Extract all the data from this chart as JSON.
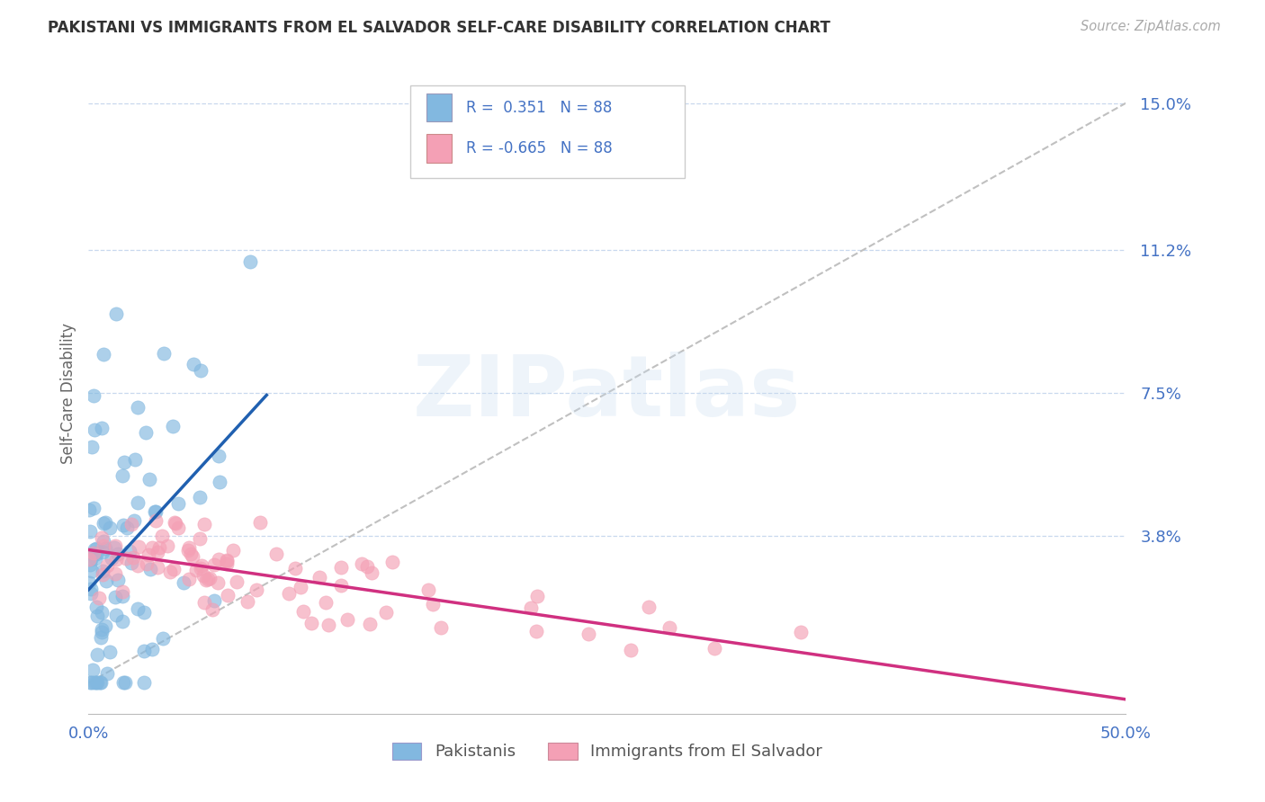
{
  "title": "PAKISTANI VS IMMIGRANTS FROM EL SALVADOR SELF-CARE DISABILITY CORRELATION CHART",
  "source": "Source: ZipAtlas.com",
  "ylabel": "Self-Care Disability",
  "xlim": [
    0.0,
    0.5
  ],
  "ylim": [
    -0.008,
    0.158
  ],
  "yticks": [
    0.038,
    0.075,
    0.112,
    0.15
  ],
  "ytick_labels": [
    "3.8%",
    "7.5%",
    "11.2%",
    "15.0%"
  ],
  "xticks": [
    0.0,
    0.5
  ],
  "xtick_labels": [
    "0.0%",
    "50.0%"
  ],
  "blue_color": "#82b8e0",
  "pink_color": "#f4a0b5",
  "trend_blue": "#2060b0",
  "trend_pink": "#d03080",
  "ref_line_color": "#c0c0c0",
  "grid_color": "#c8d8ee",
  "axis_color": "#4472C4",
  "text_color": "#333333",
  "background": "#ffffff",
  "watermark": "ZIPatlas",
  "N": 88,
  "blue_R": 0.351,
  "pink_R": -0.665
}
